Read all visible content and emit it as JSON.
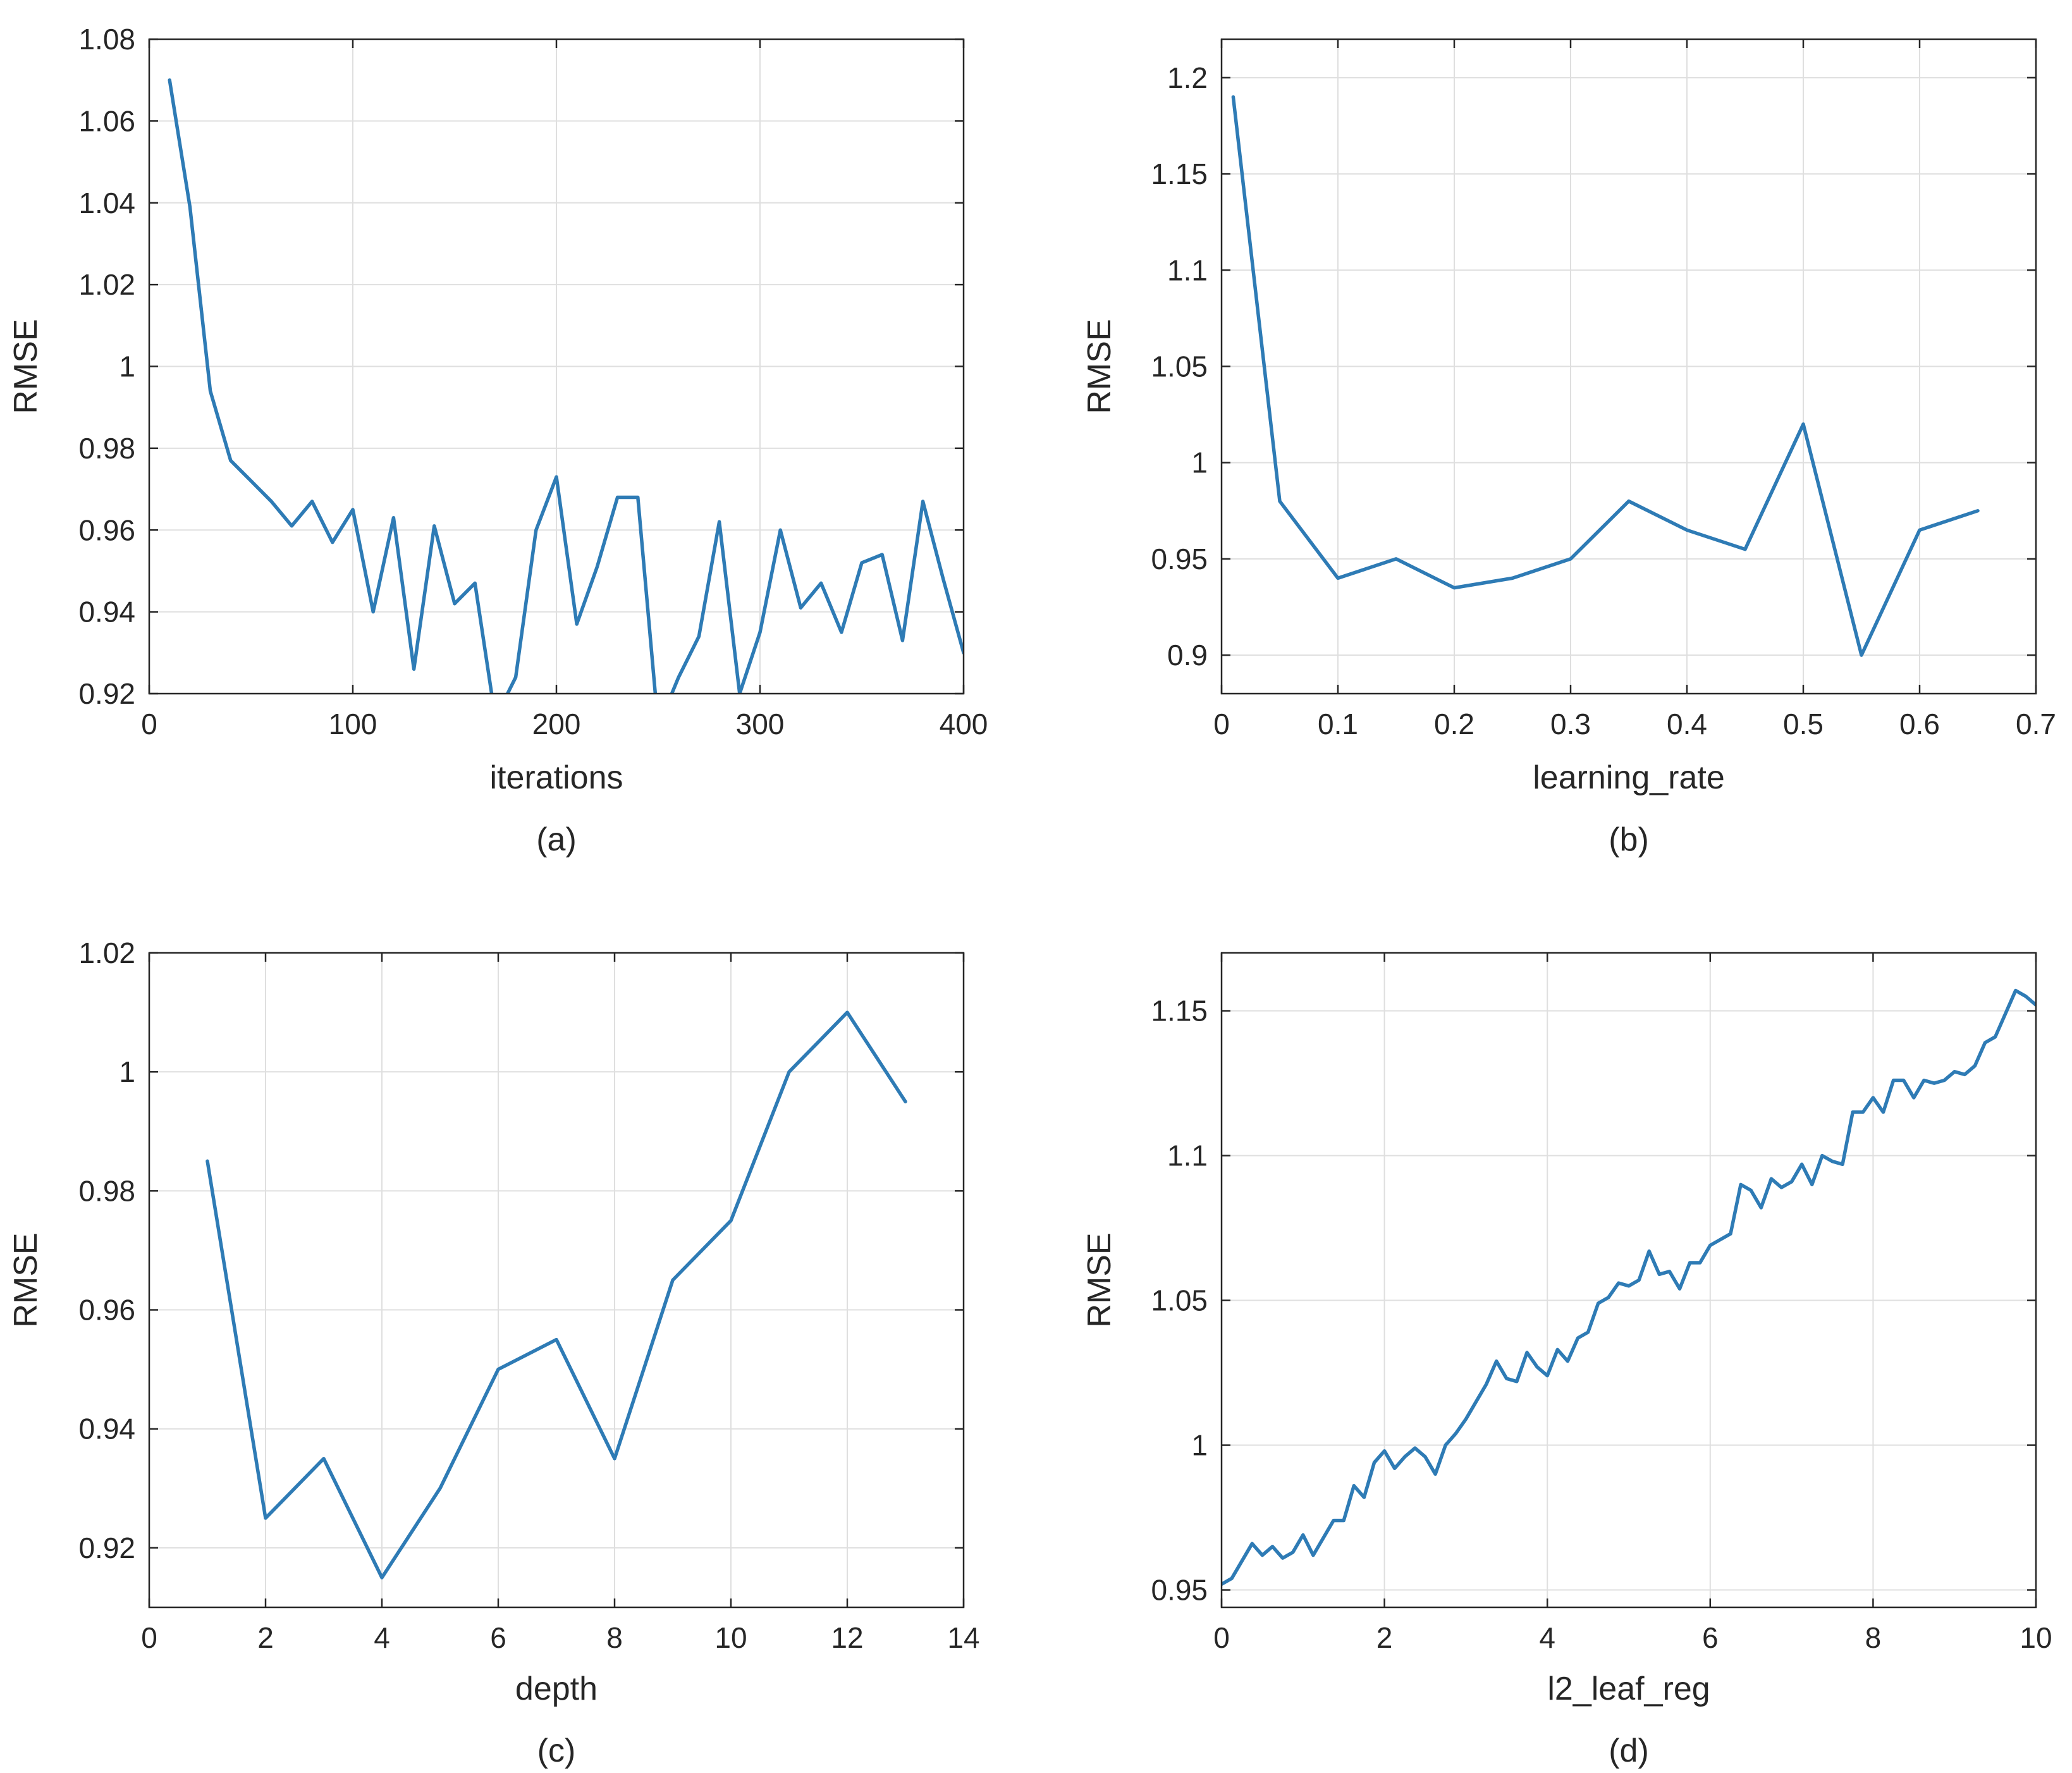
{
  "accent_color": "#2e7bb5",
  "chart_data": [
    {
      "type": "line",
      "caption": "(a)",
      "xlabel": "iterations",
      "ylabel": "RMSE",
      "xlim": [
        0,
        400
      ],
      "ylim": [
        0.92,
        1.08
      ],
      "xticks": [
        0,
        100,
        200,
        300,
        400
      ],
      "yticks": [
        0.92,
        0.94,
        0.96,
        0.98,
        1,
        1.02,
        1.04,
        1.06,
        1.08
      ],
      "ytick_labels": [
        "0.92",
        "0.94",
        "0.96",
        "0.98",
        "1",
        "1.02",
        "1.04",
        "1.06",
        "1.08"
      ],
      "grid": true,
      "series": [
        {
          "color": "#2e7bb5",
          "x": [
            10,
            20,
            30,
            40,
            50,
            60,
            70,
            80,
            90,
            100,
            110,
            120,
            130,
            140,
            150,
            160,
            170,
            180,
            190,
            200,
            210,
            220,
            230,
            240,
            250,
            260,
            270,
            280,
            290,
            300,
            310,
            320,
            330,
            340,
            350,
            360,
            370,
            380,
            390,
            400
          ],
          "y": [
            1.07,
            1.039,
            0.994,
            0.977,
            0.972,
            0.967,
            0.961,
            0.967,
            0.957,
            0.965,
            0.94,
            0.963,
            0.926,
            0.961,
            0.942,
            0.947,
            0.914,
            0.924,
            0.96,
            0.973,
            0.937,
            0.951,
            0.968,
            0.968,
            0.912,
            0.924,
            0.934,
            0.962,
            0.92,
            0.935,
            0.96,
            0.941,
            0.947,
            0.935,
            0.952,
            0.954,
            0.933,
            0.967,
            0.948,
            0.93
          ]
        }
      ]
    },
    {
      "type": "line",
      "caption": "(b)",
      "xlabel": "learning_rate",
      "ylabel": "RMSE",
      "xlim": [
        0,
        0.7
      ],
      "ylim": [
        0.88,
        1.22
      ],
      "xticks": [
        0,
        0.1,
        0.2,
        0.3,
        0.4,
        0.5,
        0.6,
        0.7
      ],
      "yticks": [
        0.9,
        0.95,
        1,
        1.05,
        1.1,
        1.15,
        1.2
      ],
      "ytick_labels": [
        "0.9",
        "0.95",
        "1",
        "1.05",
        "1.1",
        "1.15",
        "1.2"
      ],
      "grid": true,
      "series": [
        {
          "color": "#2e7bb5",
          "x": [
            0.01,
            0.05,
            0.1,
            0.15,
            0.2,
            0.25,
            0.3,
            0.35,
            0.4,
            0.45,
            0.5,
            0.55,
            0.6,
            0.65
          ],
          "y": [
            1.19,
            0.98,
            0.94,
            0.95,
            0.935,
            0.94,
            0.95,
            0.98,
            0.965,
            0.955,
            1.02,
            0.9,
            0.965,
            0.975
          ]
        }
      ]
    },
    {
      "type": "line",
      "caption": "(c)",
      "xlabel": "depth",
      "ylabel": "RMSE",
      "xlim": [
        0,
        14
      ],
      "ylim": [
        0.91,
        1.02
      ],
      "xticks": [
        0,
        2,
        4,
        6,
        8,
        10,
        12,
        14
      ],
      "yticks": [
        0.92,
        0.94,
        0.96,
        0.98,
        1,
        1.02
      ],
      "ytick_labels": [
        "0.92",
        "0.94",
        "0.96",
        "0.98",
        "1",
        "1.02"
      ],
      "grid": true,
      "series": [
        {
          "color": "#2e7bb5",
          "x": [
            1,
            2,
            3,
            4,
            5,
            6,
            7,
            8,
            9,
            10,
            11,
            12,
            13
          ],
          "y": [
            0.985,
            0.925,
            0.935,
            0.915,
            0.93,
            0.95,
            0.955,
            0.935,
            0.965,
            0.975,
            1.0,
            1.01,
            0.995
          ]
        }
      ]
    },
    {
      "type": "line",
      "caption": "(d)",
      "xlabel": "l2_leaf_reg",
      "ylabel": "RMSE",
      "xlim": [
        0,
        10
      ],
      "ylim": [
        0.944,
        1.17
      ],
      "xticks": [
        0,
        2,
        4,
        6,
        8,
        10
      ],
      "yticks": [
        0.95,
        1,
        1.05,
        1.1,
        1.15
      ],
      "ytick_labels": [
        "0.95",
        "1",
        "1.05",
        "1.1",
        "1.15"
      ],
      "grid": true,
      "series": [
        {
          "color": "#2e7bb5",
          "x": [
            0,
            0.125,
            0.25,
            0.375,
            0.5,
            0.625,
            0.75,
            0.875,
            1,
            1.125,
            1.25,
            1.375,
            1.5,
            1.625,
            1.75,
            1.875,
            2,
            2.125,
            2.25,
            2.375,
            2.5,
            2.625,
            2.75,
            2.875,
            3,
            3.125,
            3.25,
            3.375,
            3.5,
            3.625,
            3.75,
            3.875,
            4,
            4.125,
            4.25,
            4.375,
            4.5,
            4.625,
            4.75,
            4.875,
            5,
            5.125,
            5.25,
            5.375,
            5.5,
            5.625,
            5.75,
            5.875,
            6,
            6.125,
            6.25,
            6.375,
            6.5,
            6.625,
            6.75,
            6.875,
            7,
            7.125,
            7.25,
            7.375,
            7.5,
            7.625,
            7.75,
            7.875,
            8,
            8.125,
            8.25,
            8.375,
            8.5,
            8.625,
            8.75,
            8.875,
            9,
            9.125,
            9.25,
            9.375,
            9.5,
            9.625,
            9.75,
            9.875,
            10
          ],
          "y": [
            0.952,
            0.954,
            0.96,
            0.966,
            0.962,
            0.965,
            0.961,
            0.963,
            0.969,
            0.962,
            0.968,
            0.974,
            0.974,
            0.986,
            0.982,
            0.994,
            0.998,
            0.992,
            0.996,
            0.999,
            0.996,
            0.99,
            1.0,
            1.004,
            1.009,
            1.015,
            1.021,
            1.029,
            1.023,
            1.022,
            1.032,
            1.027,
            1.024,
            1.033,
            1.029,
            1.037,
            1.039,
            1.049,
            1.051,
            1.056,
            1.055,
            1.057,
            1.067,
            1.059,
            1.06,
            1.054,
            1.063,
            1.063,
            1.069,
            1.071,
            1.073,
            1.09,
            1.088,
            1.082,
            1.092,
            1.089,
            1.091,
            1.097,
            1.09,
            1.1,
            1.098,
            1.097,
            1.115,
            1.115,
            1.12,
            1.115,
            1.126,
            1.126,
            1.12,
            1.126,
            1.125,
            1.126,
            1.129,
            1.128,
            1.131,
            1.139,
            1.141,
            1.149,
            1.157,
            1.155,
            1.152
          ]
        }
      ]
    }
  ]
}
